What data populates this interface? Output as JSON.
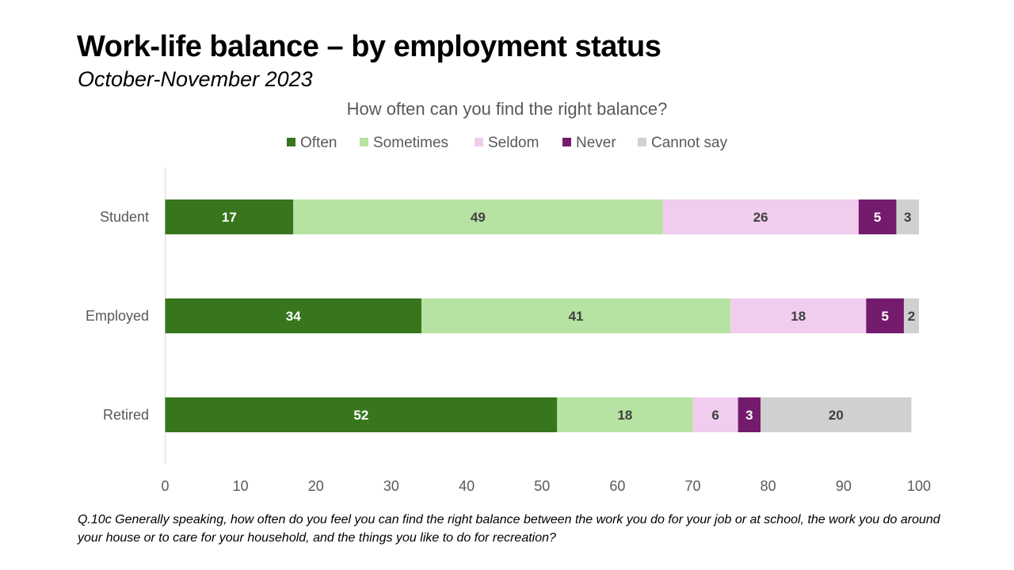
{
  "header": {
    "title": "Work-life balance – by employment status",
    "subtitle": "October-November 2023"
  },
  "footnote": "Q.10c Generally speaking, how often do you feel you can find the right balance between the work you do for your job or at school, the work you do around your house or to care for your household, and the things you like to do for recreation?",
  "chart_data": {
    "type": "bar",
    "orientation": "horizontal",
    "stacked": true,
    "title": "How often can you find the right balance?",
    "xlabel": "",
    "ylabel": "",
    "categories": [
      "Student",
      "Employed",
      "Retired"
    ],
    "series": [
      {
        "name": "Often",
        "color": "#38761d",
        "label_color": "#ffffff",
        "values": [
          17,
          34,
          52
        ]
      },
      {
        "name": "Sometimes",
        "color": "#b6e3a2",
        "label_color": "#404040",
        "values": [
          49,
          41,
          18
        ]
      },
      {
        "name": "Seldom",
        "color": "#f0cdee",
        "label_color": "#404040",
        "values": [
          26,
          18,
          6
        ]
      },
      {
        "name": "Never",
        "color": "#741b6e",
        "label_color": "#ffffff",
        "values": [
          5,
          5,
          3
        ]
      },
      {
        "name": "Cannot say",
        "color": "#d0d0d0",
        "label_color": "#404040",
        "values": [
          3,
          2,
          20
        ]
      }
    ],
    "xlim": [
      0,
      100
    ],
    "x_ticks": [
      "0",
      "10",
      "20",
      "30",
      "40",
      "50",
      "60",
      "70",
      "80",
      "90",
      "100"
    ],
    "legend_position": "top",
    "grid": false
  }
}
